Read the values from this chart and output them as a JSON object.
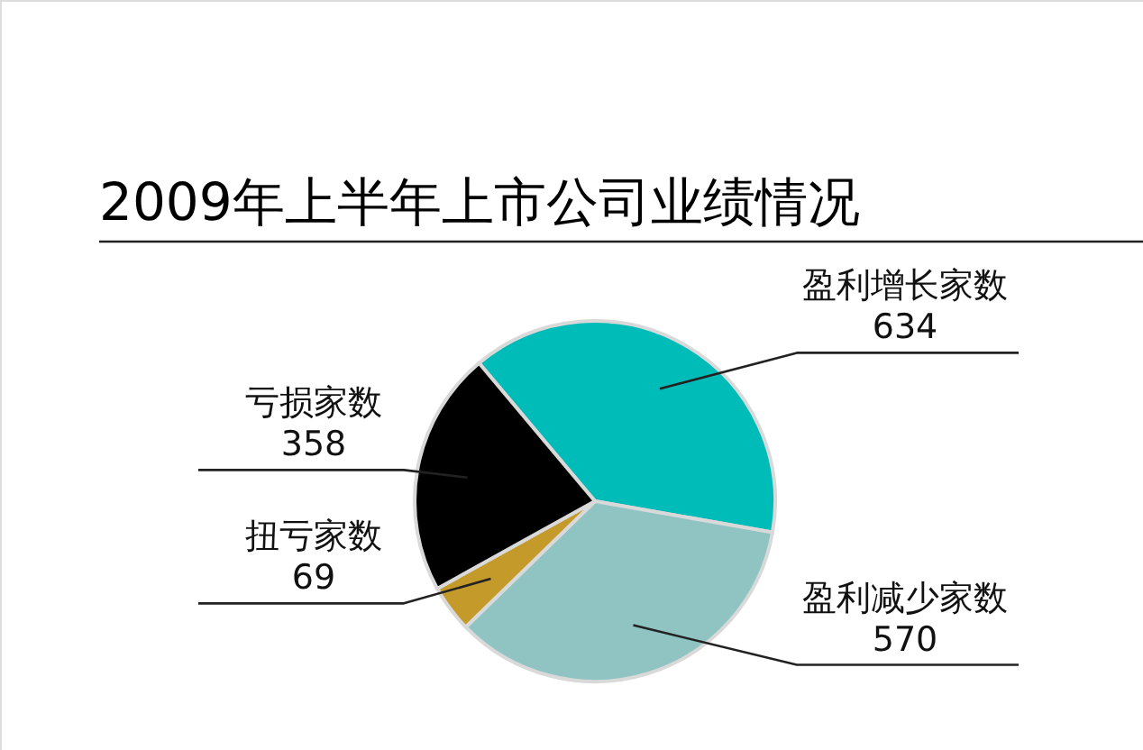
{
  "chart_data": {
    "type": "pie",
    "title": "2009年上半年上市公司业绩情况",
    "categories": [
      "盈利增长家数",
      "盈利减少家数",
      "扭亏家数",
      "亏损家数"
    ],
    "values": [
      634,
      570,
      69,
      358
    ],
    "colors": [
      "#00bcb8",
      "#8fc4c3",
      "#c49a2a",
      "#000000"
    ],
    "data_labels": true
  }
}
